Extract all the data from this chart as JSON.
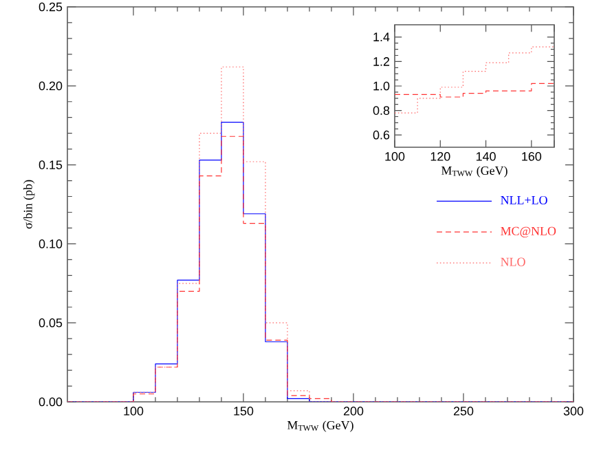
{
  "chart_data": [
    {
      "type": "histogram",
      "xlabel": "M$_{TWW}$ (GeV)",
      "ylabel": "σ/bin (pb)",
      "bins": [
        70,
        80,
        90,
        100,
        110,
        120,
        130,
        140,
        150,
        160,
        170,
        180,
        190,
        200,
        210,
        220,
        230,
        240,
        250,
        260,
        270,
        280,
        290,
        300
      ],
      "series": [
        {
          "name": "NLL+LO",
          "color": "#0000ff",
          "line_style": "solid",
          "values": [
            0,
            0,
            0,
            0.006,
            0.024,
            0.077,
            0.153,
            0.177,
            0.119,
            0.038,
            0.002,
            0,
            0,
            0,
            0,
            0,
            0,
            0,
            0,
            0,
            0,
            0,
            0
          ]
        },
        {
          "name": "MC@NLO",
          "color": "#ff3333",
          "line_style": "dashed",
          "values": [
            0,
            0,
            0,
            0.005,
            0.022,
            0.07,
            0.143,
            0.168,
            0.113,
            0.039,
            0.004,
            0.002,
            0,
            0,
            0,
            0,
            0,
            0,
            0,
            0,
            0,
            0,
            0
          ]
        },
        {
          "name": "NLO",
          "color": "#ff6666",
          "line_style": "dotted",
          "values": [
            0,
            0,
            0,
            0.006,
            0.022,
            0.075,
            0.17,
            0.212,
            0.152,
            0.05,
            0.007,
            0,
            0,
            0,
            0,
            0,
            0,
            0,
            0,
            0,
            0,
            0,
            0
          ]
        }
      ],
      "xlim": [
        70,
        300
      ],
      "ylim": [
        0,
        0.25
      ],
      "xticks": [
        100,
        150,
        200,
        250,
        300
      ],
      "yticks": [
        {
          "value": 0,
          "label": "0.00"
        },
        {
          "value": 0.05,
          "label": "0.05"
        },
        {
          "value": 0.1,
          "label": "0.10"
        },
        {
          "value": 0.15,
          "label": "0.15"
        },
        {
          "value": 0.2,
          "label": "0.20"
        },
        {
          "value": 0.25,
          "label": "0.25"
        }
      ],
      "legend": "right",
      "grid": false
    },
    {
      "type": "histogram",
      "xlabel": "M$_{TWW}$ (GeV)",
      "bins": [
        100,
        110,
        120,
        130,
        140,
        150,
        160,
        170
      ],
      "series": [
        {
          "color": "#ff3333",
          "line_style": "dashed",
          "values": [
            0.93,
            0.93,
            0.91,
            0.94,
            0.96,
            0.96,
            1.02
          ]
        },
        {
          "color": "#ff6666",
          "line_style": "dotted",
          "values": [
            0.78,
            0.9,
            0.99,
            1.12,
            1.19,
            1.27,
            1.32
          ]
        }
      ],
      "xlim": [
        100,
        170
      ],
      "ylim": [
        0.5,
        1.5
      ],
      "xticks": [
        100,
        120,
        140,
        160,
        {
          "value": 170,
          "label": null
        }
      ],
      "yticks": [
        0.6,
        0.8,
        {
          "value": 1.0,
          "label": "1.0"
        },
        1.2,
        1.4
      ],
      "legend": false,
      "grid": false
    }
  ]
}
